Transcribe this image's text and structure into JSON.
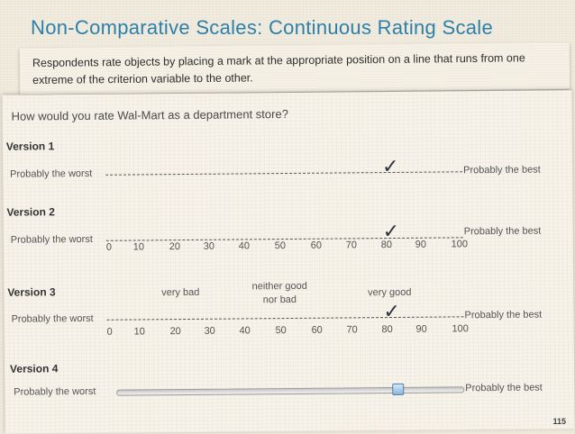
{
  "title": "Non-Comparative Scales: Continuous Rating Scale",
  "intro": "Respondents rate objects by placing a mark at the appropriate position on a line that runs from one extreme of the criterion variable to the other.",
  "question": "How would you rate Wal-Mart as a department store?",
  "left_label": "Probably the worst",
  "right_label": "Probably the best",
  "check_glyph": "✓",
  "versions": [
    {
      "label": "Version 1"
    },
    {
      "label": "Version 2",
      "ticks": [
        "0",
        "10",
        "20",
        "30",
        "40",
        "50",
        "60",
        "70",
        "80",
        "90",
        "100"
      ]
    },
    {
      "label": "Version 3",
      "ticks": [
        "0",
        "10",
        "20",
        "30",
        "40",
        "50",
        "60",
        "70",
        "80",
        "90",
        "100"
      ],
      "anchors": [
        "very bad",
        "neither good nor bad",
        "very good"
      ]
    },
    {
      "label": "Version 4",
      "slider_value": 80
    }
  ],
  "page_number": "115",
  "colors": {
    "title": "#2e7fa8",
    "background": "#f1ece0",
    "slider_thumb": "#8ab6dd"
  }
}
